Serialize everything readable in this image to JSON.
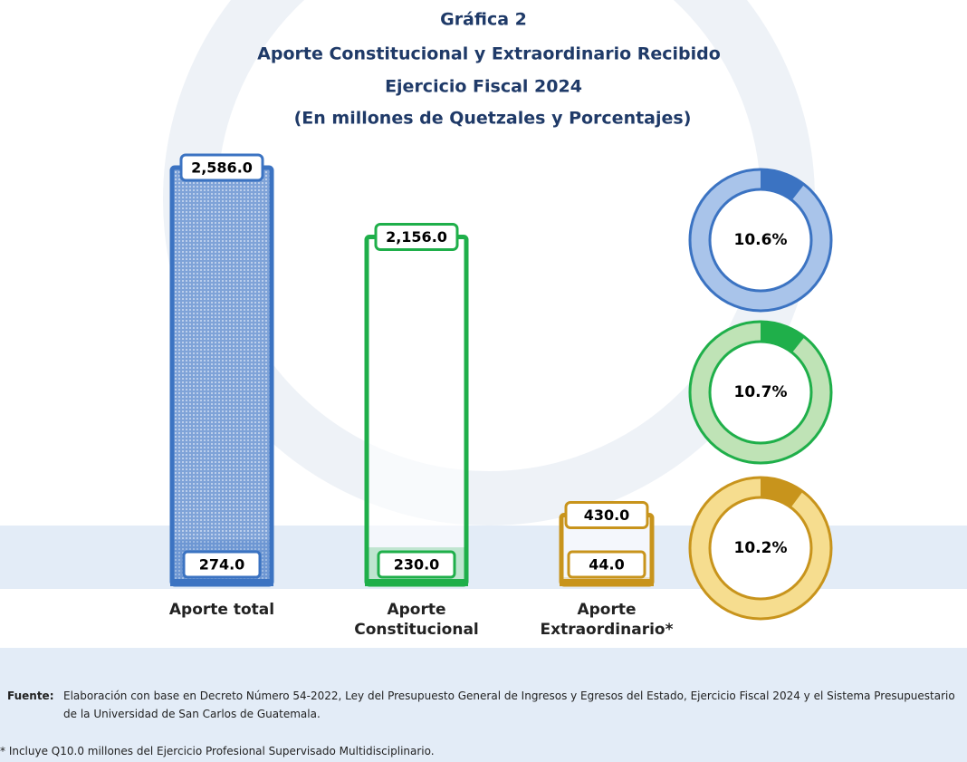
{
  "chart_data": {
    "type": "bar",
    "title": "Gráfica 2",
    "subtitle": [
      "Aporte Constitucional y Extraordinario Recibido",
      "Ejercicio Fiscal 2024",
      "(En millones de Quetzales y Porcentajes)"
    ],
    "categories": [
      "Aporte total",
      "Aporte Constitucional",
      "Aporte Extraordinario*"
    ],
    "values": [
      2586.0,
      2156.0,
      430.0
    ],
    "value_labels": [
      "2,586.0",
      "2,156.0",
      "430.0"
    ],
    "received": [
      274.0,
      230.0,
      44.0
    ],
    "received_labels": [
      "274.0",
      "230.0",
      "44.0"
    ],
    "shares": [
      10.6,
      10.7,
      10.2
    ],
    "share_labels": [
      "10.6%",
      "10.7%",
      "10.2%"
    ],
    "colors": [
      "#3b73c2",
      "#1faf4a",
      "#c8941c"
    ],
    "light_colors": [
      "#a9c4ea",
      "#bfe3b6",
      "#f6dd8f"
    ],
    "source_label": "Fuente:",
    "source": "Elaboración con base en Decreto Número 54-2022, Ley del Presupuesto General de Ingresos y Egresos del Estado, Ejercicio Fiscal 2024 y el Sistema Presupuestario de la Universidad de San Carlos de Guatemala.",
    "note": "* Incluye Q10.0 millones del Ejercicio Profesional Supervisado Multidisciplinario."
  }
}
